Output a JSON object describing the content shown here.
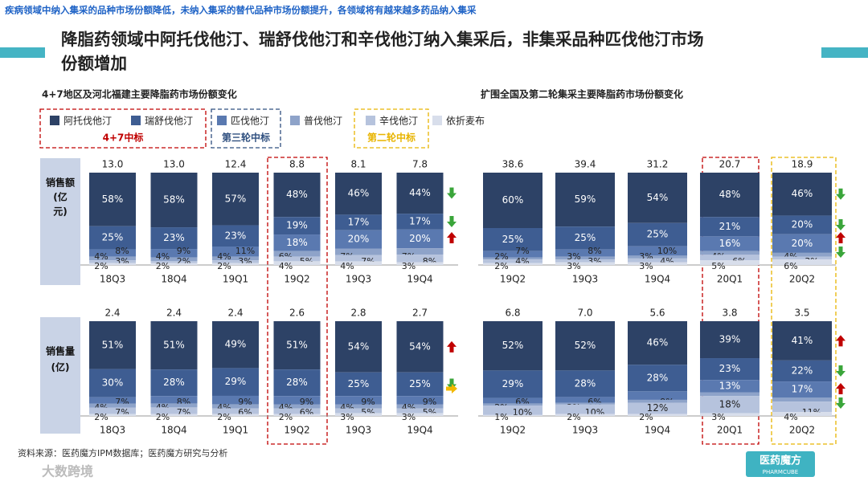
{
  "header": "疾病领域中纳入集采的品种市场份额降低，未纳入集采的替代品种市场份额提升，各领域将有越来越多药品纳入集采",
  "title": [
    "降脂药领域中阿托伐他汀、瑞舒伐他汀和辛伐他汀纳入集采后，非集采品种匹伐他汀市场",
    "份额增加"
  ],
  "legend": [
    {
      "name": "阿托伐他汀",
      "color": "#2d4266"
    },
    {
      "name": "瑞舒伐他汀",
      "color": "#3e5d92"
    },
    {
      "name": "匹伐他汀",
      "color": "#5a79b0"
    },
    {
      "name": "普伐他汀",
      "color": "#8ea3c9"
    },
    {
      "name": "辛伐他汀",
      "color": "#b6c3dd"
    },
    {
      "name": "依折麦布",
      "color": "#d8deeb"
    }
  ],
  "legend_groups": [
    {
      "label": "4+7中标",
      "color": "#c00000"
    },
    {
      "label": "第三轮中标",
      "color": "#2f4f7f"
    },
    {
      "label": "第二轮中标",
      "color": "#e8b400"
    }
  ],
  "row_labels": [
    [
      "销售额",
      "(亿",
      "元)"
    ],
    [
      "销售量",
      "(亿)"
    ]
  ],
  "chart_data": [
    {
      "type": "bar",
      "stacked": true,
      "subtitle": "4+7地区及河北福建主要降脂药市场份额变化",
      "categories": [
        "18Q3",
        "18Q4",
        "19Q1",
        "19Q2",
        "19Q3",
        "19Q4"
      ],
      "totals": {
        "values": [
          13.0,
          13.0,
          12.4,
          8.8,
          8.1,
          7.8
        ],
        "value_labels": [
          "13.0",
          "13.0",
          "12.4",
          "8.8",
          "8.1",
          "7.8"
        ]
      },
      "series": [
        {
          "values": [
            58,
            58,
            57,
            48,
            46,
            44
          ],
          "value_labels": [
            "58%",
            "58%",
            "57%",
            "48%",
            "46%",
            "44%"
          ]
        },
        {
          "values": [
            25,
            23,
            23,
            19,
            17,
            17
          ],
          "value_labels": [
            "25%",
            "23%",
            "23%",
            "19%",
            "17%",
            "17%"
          ]
        },
        {
          "values": [
            8,
            9,
            11,
            18,
            20,
            20
          ],
          "value_labels": [
            "8%",
            "9%",
            "11%",
            "18%",
            "20%",
            "20%"
          ]
        },
        {
          "values": [
            4,
            4,
            4,
            6,
            7,
            7
          ],
          "value_labels": [
            "4%",
            "4%",
            "4%",
            "6%",
            "7%",
            "7%"
          ]
        },
        {
          "values": [
            3,
            2,
            3,
            5,
            7,
            8
          ],
          "value_labels": [
            "3%",
            "2%",
            "3%",
            "5%",
            "7%",
            "8%"
          ]
        },
        {
          "values": [
            2,
            2,
            2,
            4,
            4,
            3
          ],
          "value_labels": [
            "2%",
            "2%",
            "2%",
            "4%",
            "4%",
            "3%"
          ]
        }
      ],
      "arrows": [
        "down",
        "down",
        "up"
      ]
    },
    {
      "type": "bar",
      "stacked": true,
      "categories": [
        "18Q3",
        "18Q4",
        "19Q1",
        "19Q2",
        "19Q3",
        "19Q4"
      ],
      "totals": {
        "values": [
          2.4,
          2.4,
          2.4,
          2.6,
          2.8,
          2.7
        ],
        "value_labels": [
          "2.4",
          "2.4",
          "2.4",
          "2.6",
          "2.8",
          "2.7"
        ]
      },
      "series": [
        {
          "values": [
            51,
            51,
            49,
            51,
            54,
            54
          ],
          "value_labels": [
            "51%",
            "51%",
            "49%",
            "51%",
            "54%",
            "54%"
          ]
        },
        {
          "values": [
            30,
            28,
            29,
            28,
            25,
            25
          ],
          "value_labels": [
            "30%",
            "28%",
            "29%",
            "28%",
            "25%",
            "25%"
          ]
        },
        {
          "values": [
            7,
            8,
            9,
            9,
            9,
            9
          ],
          "value_labels": [
            "7%",
            "8%",
            "9%",
            "9%",
            "9%",
            "9%"
          ]
        },
        {
          "values": [
            4,
            4,
            4,
            4,
            4,
            4
          ],
          "value_labels": [
            "4%",
            "4%",
            "4%",
            "4%",
            "4%",
            "4%"
          ]
        },
        {
          "values": [
            7,
            7,
            6,
            6,
            5,
            5
          ],
          "value_labels": [
            "7%",
            "7%",
            "6%",
            "6%",
            "5%",
            "5%"
          ]
        },
        {
          "values": [
            2,
            2,
            2,
            2,
            3,
            3
          ],
          "value_labels": [
            "2%",
            "2%",
            "2%",
            "2%",
            "3%",
            "3%"
          ]
        }
      ],
      "arrows": [
        "up",
        "down",
        "right"
      ]
    },
    {
      "type": "bar",
      "stacked": true,
      "subtitle": "扩围全国及第二轮集采主要降脂药市场份额变化",
      "categories": [
        "19Q2",
        "19Q3",
        "19Q4",
        "20Q1",
        "20Q2"
      ],
      "totals": {
        "values": [
          38.6,
          39.4,
          31.2,
          20.7,
          18.9
        ],
        "value_labels": [
          "38.6",
          "39.4",
          "31.2",
          "20.7",
          "18.9"
        ]
      },
      "series": [
        {
          "values": [
            60,
            59,
            54,
            48,
            46
          ],
          "value_labels": [
            "60%",
            "59%",
            "54%",
            "48%",
            "46%"
          ]
        },
        {
          "values": [
            25,
            25,
            25,
            21,
            20
          ],
          "value_labels": [
            "25%",
            "25%",
            "25%",
            "21%",
            "20%"
          ]
        },
        {
          "values": [
            7,
            8,
            10,
            16,
            20
          ],
          "value_labels": [
            "7%",
            "8%",
            "10%",
            "16%",
            "20%"
          ]
        },
        {
          "values": [
            2,
            3,
            3,
            4,
            4
          ],
          "value_labels": [
            "2%",
            "3%",
            "3%",
            "4%",
            "4%"
          ]
        },
        {
          "values": [
            4,
            3,
            4,
            6,
            3
          ],
          "value_labels": [
            "4%",
            "3%",
            "4%",
            "6%",
            "3%"
          ]
        },
        {
          "values": [
            2,
            3,
            3,
            5,
            6
          ],
          "value_labels": [
            "2%",
            "3%",
            "3%",
            "5%",
            "6%"
          ]
        }
      ],
      "arrows": [
        "down",
        "down",
        "up",
        "down"
      ]
    },
    {
      "type": "bar",
      "stacked": true,
      "categories": [
        "19Q2",
        "19Q3",
        "19Q4",
        "20Q1",
        "20Q2"
      ],
      "totals": {
        "values": [
          6.8,
          7.0,
          5.6,
          3.8,
          3.5
        ],
        "value_labels": [
          "6.8",
          "7.0",
          "5.6",
          "3.8",
          "3.5"
        ]
      },
      "series": [
        {
          "values": [
            52,
            52,
            46,
            39,
            41
          ],
          "value_labels": [
            "52%",
            "52%",
            "46%",
            "39%",
            "41%"
          ]
        },
        {
          "values": [
            29,
            28,
            28,
            23,
            22
          ],
          "value_labels": [
            "29%",
            "28%",
            "28%",
            "23%",
            "22%"
          ]
        },
        {
          "values": [
            6,
            6,
            9,
            13,
            17
          ],
          "value_labels": [
            "6%",
            "6%",
            "9%",
            "13%",
            "17%"
          ]
        },
        {
          "values": [
            2,
            2,
            3,
            4,
            4
          ],
          "value_labels": [
            "2%",
            "2%",
            "3%",
            "4%",
            "4%"
          ]
        },
        {
          "values": [
            10,
            10,
            12,
            18,
            11
          ],
          "value_labels": [
            "10%",
            "10%",
            "12%",
            "18%",
            "11%"
          ]
        },
        {
          "values": [
            1,
            2,
            2,
            3,
            4
          ],
          "value_labels": [
            "1%",
            "2%",
            "2%",
            "3%",
            "4%"
          ]
        }
      ],
      "arrows": [
        "up",
        "down",
        "up",
        "down"
      ]
    }
  ],
  "source": "资料来源：医药魔方IPM数据库；医药魔方研究与分析",
  "watermark": "大数跨境",
  "logo": {
    "name": "医药魔方",
    "sub": "PHARMCUBE"
  }
}
